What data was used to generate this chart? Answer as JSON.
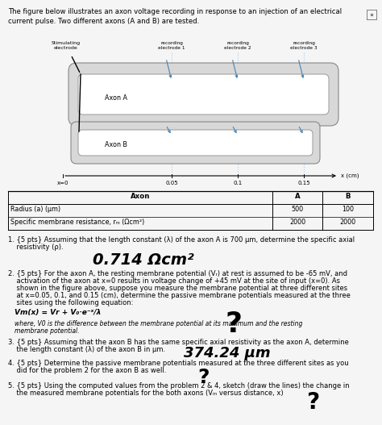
{
  "title_text": "The figure below illustrates an axon voltage recording in response to an injection of an electrical\ncurrent pulse. Two different axons (A and B) are tested.",
  "background_color": "#f5f5f5",
  "fig_width": 4.74,
  "fig_height": 5.27,
  "table_headers": [
    "Axon",
    "A",
    "B"
  ],
  "table_row1_label": "Radius (a) (μm)",
  "table_row1_a": "500",
  "table_row1_b": "100",
  "table_row2_label": "Specific membrane resistance, rₘ (Ωcm²)",
  "table_row2_a": "2000",
  "table_row2_b": "2000",
  "q1_line1": "1. {5 pts} Assuming that the length constant (λ) of the axon A is 700 μm, determine the specific axial",
  "q1_line2": "    resistivity (ρ).",
  "q1_answer": "0.714 Ωcm²",
  "q2_line1": "2. {5 pts} For the axon A, the resting membrane potential (Vᵣ) at rest is assumed to be -65 mV, and",
  "q2_line2": "    activation of the axon at x=0 results in voltage change of +45 mV at the site of input (x=0). As",
  "q2_line3": "    shown in the figure above, suppose you measure the membrane potential at three different sites",
  "q2_line4": "    at x=0.05, 0.1, and 0.15 (cm), determine the passive membrane potentials measured at the three",
  "q2_line5": "    sites using the following equation:",
  "q2_eq": "Vm(x) = Vr + V0*e-x/λ",
  "q2_note1": "where, V0 is the difference between the membrane potential at its maximum and the resting",
  "q2_note2": "membrane potential.",
  "q3_line1": "3. {5 pts} Assuming that the axon B has the same specific axial resistivity as the axon A, determine",
  "q3_line2": "    the length constant (λ) of the axon B in μm.",
  "q3_answer": "374.24 μm",
  "q4_line1": "4. {5 pts} Determine the passive membrane potentials measured at the three different sites as you",
  "q4_line2": "    did for the problem 2 for the axon B as well.",
  "q5_line1": "5. {5 pts} Using the computed values from the problem 2 & 4, sketch (draw the lines) the change in",
  "q5_line2": "    the measured membrane potentials for the both axons (Vₘ versus distance, x)"
}
